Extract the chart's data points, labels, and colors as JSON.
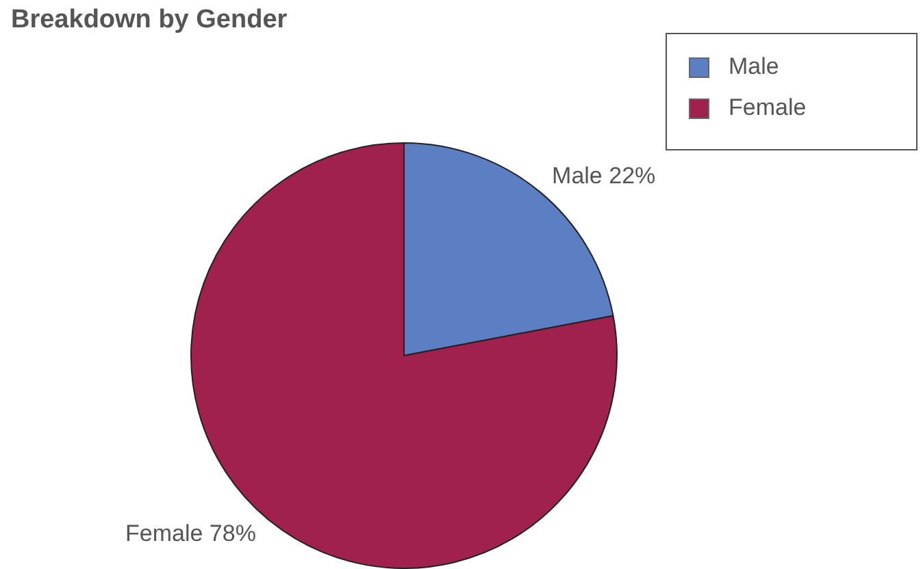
{
  "chart_data": {
    "type": "pie",
    "title": "Breakdown by Gender",
    "categories": [
      "Male",
      "Female"
    ],
    "values": [
      22,
      78
    ],
    "colors": [
      "#5b7fc2",
      "#a1214e"
    ],
    "value_labels": [
      "Male 22%",
      "Female 78%"
    ],
    "legend": "top right"
  }
}
